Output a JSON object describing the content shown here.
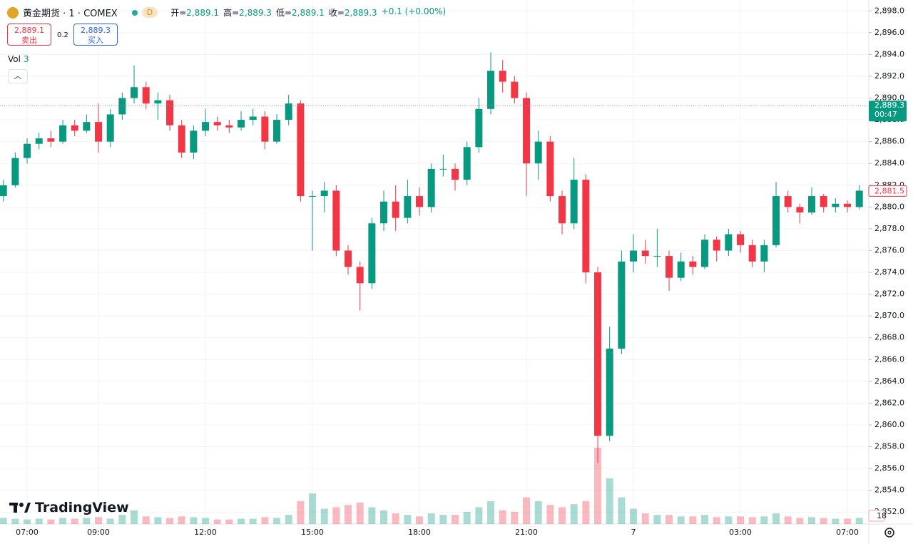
{
  "header": {
    "symbol": "黄金期货 · 1 · COMEX",
    "interval_badge": "D",
    "ohlc": [
      {
        "label": "开=",
        "value": "2,889.1"
      },
      {
        "label": "高=",
        "value": "2,889.3"
      },
      {
        "label": "低=",
        "value": "2,889.1"
      },
      {
        "label": "收=",
        "value": "2,889.3"
      }
    ],
    "change": "+0.1 (+0.00%)",
    "sell": {
      "price": "2,889.1",
      "label": "卖出"
    },
    "spread": "0.2",
    "buy": {
      "price": "2,889.3",
      "label": "买入"
    },
    "volume_label": "Vol",
    "volume_value": "3",
    "brand": "TradingView"
  },
  "chart_data": {
    "type": "candlestick",
    "categories": [
      null,
      null,
      "07:00",
      null,
      null,
      null,
      null,
      null,
      "09:00",
      null,
      null,
      null,
      null,
      null,
      null,
      null,
      null,
      "12:00",
      null,
      null,
      null,
      null,
      null,
      null,
      null,
      null,
      "15:00",
      null,
      null,
      null,
      null,
      null,
      null,
      null,
      null,
      "18:00",
      null,
      null,
      null,
      null,
      null,
      null,
      null,
      null,
      "21:00",
      null,
      null,
      null,
      null,
      null,
      null,
      null,
      null,
      "7",
      null,
      null,
      null,
      null,
      null,
      null,
      null,
      null,
      "03:00",
      null,
      null,
      null,
      null,
      null,
      null,
      null,
      null,
      "07:00",
      null
    ],
    "open": [
      2881,
      2882,
      2884.5,
      2885.8,
      2886.3,
      2886,
      2887.5,
      2887,
      2887.8,
      2886,
      2888.5,
      2890,
      2891,
      2889.5,
      2889.8,
      2887.5,
      2885,
      2887,
      2887.8,
      2887.5,
      2887.3,
      2888,
      2888.3,
      2886,
      2888,
      2889.5,
      2881,
      2881,
      2881.5,
      2876,
      2874.5,
      2873,
      2878.5,
      2880.5,
      2879,
      2881,
      2880,
      2883.5,
      2883.5,
      2882.5,
      2885.5,
      2889,
      2892.5,
      2891.5,
      2890,
      2884,
      2886,
      2881,
      2878.5,
      2882.5,
      2874,
      2859,
      2867,
      2875,
      2876,
      2875.5,
      2875.5,
      2873.5,
      2875,
      2874.5,
      2877,
      2876,
      2877.5,
      2876.5,
      2875,
      2876.5,
      2881,
      2880,
      2879.5,
      2881,
      2880,
      2880.3,
      2880
    ],
    "high": [
      2882.5,
      2885,
      2886.3,
      2886.8,
      2887,
      2888,
      2888,
      2888.5,
      2889.5,
      2889,
      2890.5,
      2893,
      2891.5,
      2890.5,
      2890.3,
      2888,
      2887.5,
      2889,
      2888.3,
      2888,
      2888.8,
      2889,
      2888.8,
      2888.5,
      2890.3,
      2889.8,
      2881.5,
      2882.3,
      2882,
      2876.5,
      2875,
      2879,
      2881.5,
      2882,
      2882.5,
      2881.8,
      2884,
      2884.8,
      2884,
      2886,
      2890,
      2894.2,
      2893.5,
      2892,
      2890.5,
      2887,
      2886.5,
      2881.5,
      2884.5,
      2883,
      2874.5,
      2869,
      2876,
      2877.5,
      2877,
      2878,
      2876,
      2875.8,
      2875.5,
      2877.5,
      2877.3,
      2878,
      2877.8,
      2877,
      2877,
      2882.3,
      2881.5,
      2880.3,
      2881.8,
      2881.2,
      2880.8,
      2880.6,
      2882
    ],
    "low": [
      2880.5,
      2881.8,
      2884,
      2885.3,
      2885.5,
      2885.8,
      2886.5,
      2886.8,
      2885,
      2885.5,
      2888,
      2889.5,
      2889,
      2888,
      2887,
      2884.5,
      2884.4,
      2886.5,
      2887,
      2886.8,
      2887,
      2887.5,
      2885.3,
      2885.8,
      2887.5,
      2880.5,
      2876,
      2879.5,
      2875.5,
      2873.8,
      2870.5,
      2872.5,
      2877.8,
      2877.8,
      2878.5,
      2879.2,
      2879.5,
      2882.8,
      2881.5,
      2882,
      2885,
      2888.5,
      2890.5,
      2889.5,
      2881,
      2882.5,
      2880.5,
      2877.5,
      2878,
      2873,
      2856.5,
      2858.5,
      2866.5,
      2874,
      2874.8,
      2874.5,
      2872.3,
      2873.2,
      2873.8,
      2874.3,
      2875,
      2875.5,
      2875.8,
      2874.5,
      2874,
      2876.3,
      2879.5,
      2878.5,
      2879.3,
      2879.5,
      2879.5,
      2879.5,
      2879.8
    ],
    "close": [
      2882,
      2884.5,
      2885.8,
      2886.3,
      2886,
      2887.5,
      2887,
      2887.8,
      2886,
      2888.5,
      2890,
      2891,
      2889.5,
      2889.8,
      2887.5,
      2885,
      2887,
      2887.8,
      2887.5,
      2887.3,
      2888,
      2888.3,
      2886,
      2888,
      2889.5,
      2881,
      2881,
      2881.5,
      2876,
      2874.5,
      2873,
      2878.5,
      2880.5,
      2879,
      2881,
      2880,
      2883.5,
      2883.5,
      2882.5,
      2885.5,
      2889,
      2892.5,
      2891.5,
      2890,
      2884,
      2886,
      2881,
      2878.5,
      2882.5,
      2874,
      2859,
      2867,
      2875,
      2876,
      2875.5,
      2875.5,
      2873.5,
      2875,
      2874.5,
      2877,
      2876,
      2877.5,
      2876.5,
      2875,
      2876.5,
      2881,
      2880,
      2879.5,
      2881,
      2880,
      2880.3,
      2880,
      2881.5
    ],
    "volume": [
      8,
      7,
      6,
      7,
      6,
      8,
      7,
      8,
      9,
      7,
      12,
      18,
      10,
      9,
      8,
      10,
      9,
      8,
      6,
      6,
      7,
      7,
      9,
      8,
      12,
      30,
      40,
      20,
      22,
      25,
      28,
      22,
      18,
      14,
      12,
      10,
      14,
      12,
      12,
      16,
      22,
      30,
      18,
      16,
      35,
      30,
      25,
      22,
      26,
      30,
      100,
      60,
      35,
      20,
      14,
      12,
      12,
      10,
      10,
      12,
      9,
      10,
      10,
      9,
      10,
      14,
      10,
      8,
      9,
      8,
      7,
      7,
      8
    ],
    "up_color": "#089981",
    "down_color": "#f23645",
    "ylim": [
      2850.9,
      2899.0
    ],
    "yticks": [
      {
        "value": 2852,
        "label": "2,852.0"
      },
      {
        "value": 2854,
        "label": "2,854.0"
      },
      {
        "value": 2856,
        "label": "2,856.0"
      },
      {
        "value": 2858,
        "label": "2,858.0"
      },
      {
        "value": 2860,
        "label": "2,860.0"
      },
      {
        "value": 2862,
        "label": "2,862.0"
      },
      {
        "value": 2864,
        "label": "2,864.0"
      },
      {
        "value": 2866,
        "label": "2,866.0"
      },
      {
        "value": 2868,
        "label": "2,868.0"
      },
      {
        "value": 2870,
        "label": "2,870.0"
      },
      {
        "value": 2872,
        "label": "2,872.0"
      },
      {
        "value": 2874,
        "label": "2,874.0"
      },
      {
        "value": 2876,
        "label": "2,876.0"
      },
      {
        "value": 2878,
        "label": "2,878.0"
      },
      {
        "value": 2880,
        "label": "2,880.0"
      },
      {
        "value": 2882,
        "label": "2,882.0"
      },
      {
        "value": 2884,
        "label": "2,884.0"
      },
      {
        "value": 2886,
        "label": "2,886.0"
      },
      {
        "value": 2888,
        "label": "2,888.0"
      },
      {
        "value": 2890,
        "label": "2,890.0"
      },
      {
        "value": 2892,
        "label": "2,892.0"
      },
      {
        "value": 2894,
        "label": "2,894.0"
      },
      {
        "value": 2896,
        "label": "2,896.0"
      },
      {
        "value": 2898,
        "label": "2,898.0"
      }
    ],
    "grid": true,
    "price_lines": [
      {
        "value": 2889.3,
        "label": "2,889.3",
        "countdown": "00:47",
        "color": "#089981"
      },
      {
        "value": 2881.5,
        "label": "2,881.5",
        "color": "#f23645"
      }
    ],
    "volume_tag": 18
  }
}
